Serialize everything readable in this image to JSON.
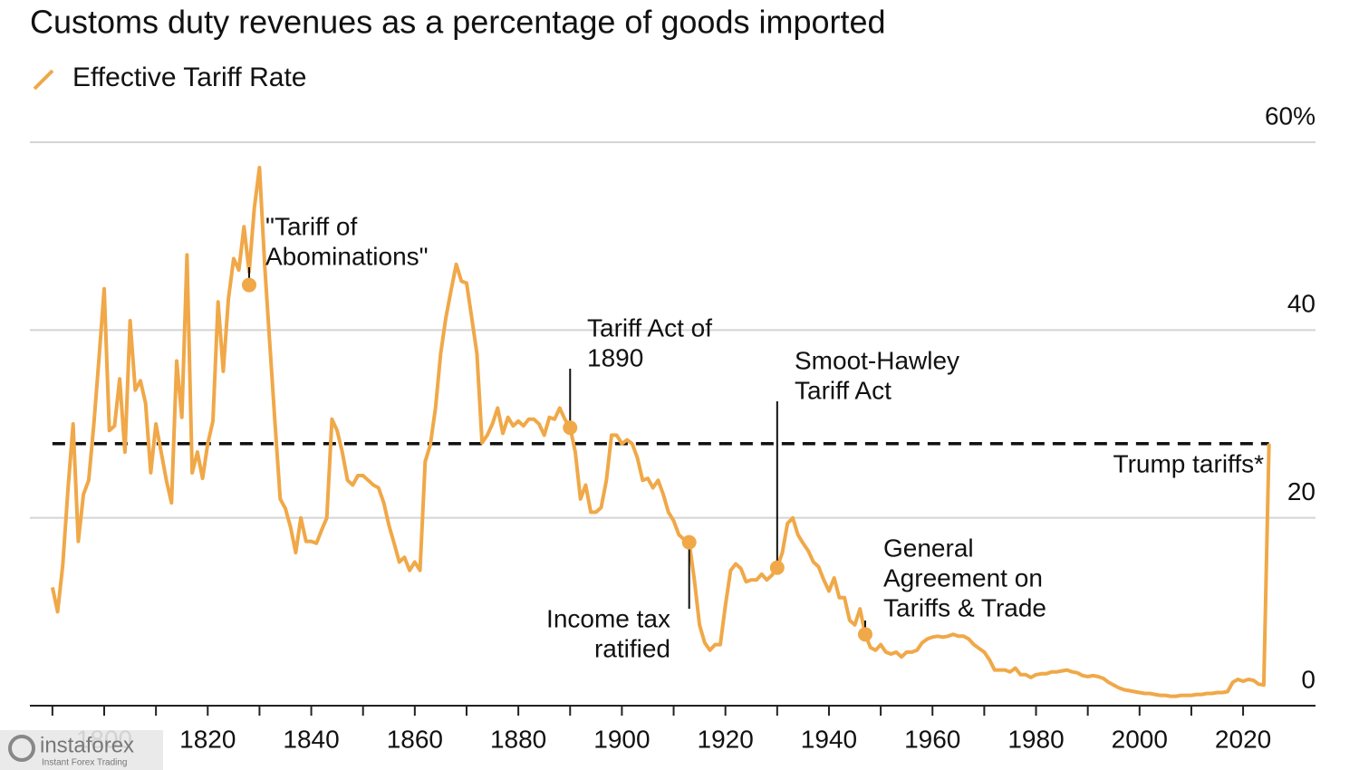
{
  "chart_data": {
    "type": "line",
    "title": "Customs duty revenues as a percentage of goods imported",
    "series": [
      {
        "name": "Effective Tariff Rate",
        "color": "#f0a848",
        "values": [
          12.6,
          10,
          15,
          23,
          30,
          17.5,
          22.5,
          24,
          30,
          37,
          44.4,
          29.3,
          29.8,
          34.8,
          27,
          41,
          33.6,
          34.6,
          32.2,
          24.8,
          30,
          27,
          24,
          21.6,
          36.7,
          30.7,
          48,
          24.8,
          27,
          24.2,
          27.9,
          30.3,
          43,
          35.6,
          43.3,
          47.6,
          46.4,
          51,
          46.2,
          53,
          57.3,
          47,
          38.5,
          30,
          22,
          21,
          19,
          16.3,
          20,
          17.5,
          17.5,
          17.3,
          18.7,
          20,
          30.5,
          29.3,
          27,
          24,
          23.5,
          24.5,
          24.5,
          24,
          23.5,
          23.2,
          21.6,
          19.2,
          17.3,
          15.3,
          15.8,
          14.4,
          15.3,
          14.4,
          26,
          27.8,
          31.7,
          37.5,
          41.3,
          44.2,
          47,
          45.2,
          45,
          41.3,
          37.5,
          28,
          28.8,
          30,
          31.7,
          29,
          30.7,
          29.8,
          30.3,
          29.8,
          30.5,
          30.5,
          30,
          28.8,
          30.7,
          30.5,
          31.7,
          30.5,
          29.6,
          27,
          22,
          23.5,
          20.6,
          20.6,
          21.1,
          24,
          28.8,
          28.8,
          27.9,
          28.3,
          27.9,
          26.4,
          24,
          24.2,
          23.2,
          24,
          22.5,
          20.6,
          19.7,
          18.2,
          17.7,
          17.4,
          13.4,
          8.6,
          6.7,
          5.9,
          6.5,
          6.5,
          10.7,
          14.4,
          15.1,
          14.6,
          13.2,
          13.4,
          13.4,
          14,
          13.4,
          13.9,
          14.7,
          16.3,
          19.4,
          20,
          18.2,
          17.3,
          16.5,
          15.3,
          14.8,
          13.4,
          12.2,
          13.6,
          11.5,
          11.5,
          9.1,
          8.6,
          10.3,
          7.6,
          6.2,
          5.9,
          6.5,
          5.7,
          5.5,
          5.7,
          5.2,
          5.7,
          5.7,
          5.9,
          6.7,
          7.1,
          7.3,
          7.4,
          7.3,
          7.4,
          7.6,
          7.4,
          7.4,
          7.1,
          6.5,
          6.1,
          5.7,
          4.9,
          3.8,
          3.8,
          3.8,
          3.6,
          4,
          3.3,
          3.3,
          3,
          3.3,
          3.4,
          3.4,
          3.6,
          3.6,
          3.7,
          3.8,
          3.6,
          3.5,
          3.2,
          3.1,
          3.2,
          3.1,
          2.9,
          2.5,
          2.2,
          1.9,
          1.7,
          1.6,
          1.5,
          1.4,
          1.3,
          1.3,
          1.2,
          1.1,
          1.1,
          1.0,
          1.0,
          1.1,
          1.1,
          1.1,
          1.2,
          1.2,
          1.3,
          1.3,
          1.4,
          1.4,
          1.5,
          2.5,
          2.8,
          2.6,
          2.8,
          2.7,
          2.3,
          2.2,
          27.9
        ]
      }
    ],
    "x": [
      1790,
      1791,
      1792,
      1793,
      1794,
      1795,
      1796,
      1797,
      1798,
      1799,
      1800,
      1801,
      1802,
      1803,
      1804,
      1805,
      1806,
      1807,
      1808,
      1809,
      1810,
      1811,
      1812,
      1813,
      1814,
      1815,
      1816,
      1817,
      1818,
      1819,
      1820,
      1821,
      1822,
      1823,
      1824,
      1825,
      1826,
      1827,
      1828,
      1829,
      1830,
      1831,
      1832,
      1833,
      1834,
      1835,
      1836,
      1837,
      1838,
      1839,
      1840,
      1841,
      1842,
      1843,
      1844,
      1845,
      1846,
      1847,
      1848,
      1849,
      1850,
      1851,
      1852,
      1853,
      1854,
      1855,
      1856,
      1857,
      1858,
      1859,
      1860,
      1861,
      1862,
      1863,
      1864,
      1865,
      1866,
      1867,
      1868,
      1869,
      1870,
      1871,
      1872,
      1873,
      1874,
      1875,
      1876,
      1877,
      1878,
      1879,
      1880,
      1881,
      1882,
      1883,
      1884,
      1885,
      1886,
      1887,
      1888,
      1889,
      1890,
      1891,
      1892,
      1893,
      1894,
      1895,
      1896,
      1897,
      1898,
      1899,
      1900,
      1901,
      1902,
      1903,
      1904,
      1905,
      1906,
      1907,
      1908,
      1909,
      1910,
      1911,
      1912,
      1913,
      1914,
      1915,
      1916,
      1917,
      1918,
      1919,
      1920,
      1921,
      1922,
      1923,
      1924,
      1925,
      1926,
      1927,
      1928,
      1929,
      1930,
      1931,
      1932,
      1933,
      1934,
      1935,
      1936,
      1937,
      1938,
      1939,
      1940,
      1941,
      1942,
      1943,
      1944,
      1945,
      1946,
      1947,
      1948,
      1949,
      1950,
      1951,
      1952,
      1953,
      1954,
      1955,
      1956,
      1957,
      1958,
      1959,
      1960,
      1961,
      1962,
      1963,
      1964,
      1965,
      1966,
      1967,
      1968,
      1969,
      1970,
      1971,
      1972,
      1973,
      1974,
      1975,
      1976,
      1977,
      1978,
      1979,
      1980,
      1981,
      1982,
      1983,
      1984,
      1985,
      1986,
      1987,
      1988,
      1989,
      1990,
      1991,
      1992,
      1993,
      1994,
      1995,
      1996,
      1997,
      1998,
      1999,
      2000,
      2001,
      2002,
      2003,
      2004,
      2005,
      2006,
      2007,
      2008,
      2009,
      2010,
      2011,
      2012,
      2013,
      2014,
      2015,
      2016,
      2017,
      2018,
      2019,
      2020,
      2021,
      2022,
      2023,
      2024,
      2025
    ],
    "xlim": [
      1779.5,
      2040
    ],
    "xticks": [
      1800,
      1820,
      1840,
      1860,
      1880,
      1900,
      1920,
      1940,
      1960,
      1980,
      2000,
      2020
    ],
    "xminorticks": [
      1790,
      1800,
      1810,
      1820,
      1830,
      1840,
      1850,
      1860,
      1870,
      1880,
      1890,
      1900,
      1910,
      1920,
      1930,
      1940,
      1950,
      1960,
      1970,
      1980,
      1990,
      2000,
      2010,
      2020
    ],
    "ylim": [
      0,
      60
    ],
    "yticks": [
      0,
      20,
      40,
      {
        "value": 60,
        "label": "60%"
      }
    ],
    "grid": true,
    "reference_line": {
      "label": "Trump tariffs*",
      "value": 27.9,
      "x": [
        1790,
        2025
      ]
    },
    "annotations": [
      {
        "lines": [
          "\"Tariff of",
          "Abominations\""
        ],
        "x": 1828,
        "y": 44.8
      },
      {
        "lines": [
          "Tariff Act of",
          "1890"
        ],
        "x": 1890,
        "y": 29.6
      },
      {
        "lines": [
          "Income tax",
          "ratified"
        ],
        "x": 1913,
        "y": 17.4
      },
      {
        "lines": [
          "Smoot-Hawley",
          "Tariff Act"
        ],
        "x": 1930,
        "y": 14.7
      },
      {
        "lines": [
          "General",
          "Agreement on",
          "Tariffs & Trade"
        ],
        "x": 1947,
        "y": 7.6
      }
    ]
  },
  "watermark": {
    "brand": "instaforex",
    "tagline": "Instant Forex Trading"
  }
}
